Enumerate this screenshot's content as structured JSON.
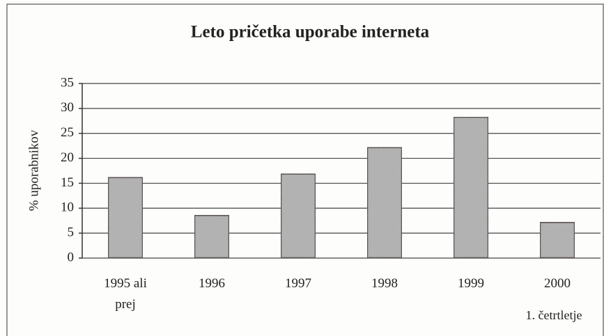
{
  "chart_data": {
    "type": "bar",
    "title": "Leto pričetka uporabe interneta",
    "y_label": "% uporabnikov",
    "categories": [
      "1995 ali prej",
      "1996",
      "1997",
      "1998",
      "1999",
      "2000"
    ],
    "values": [
      16.2,
      8.6,
      16.9,
      22.2,
      28.3,
      7.2
    ],
    "color": "#bcbcbc",
    "ylim": [
      0,
      35
    ],
    "yticks": [
      0,
      5,
      10,
      15,
      20,
      25,
      30,
      35
    ],
    "grid": true,
    "annotation": "1. četrtletje"
  }
}
